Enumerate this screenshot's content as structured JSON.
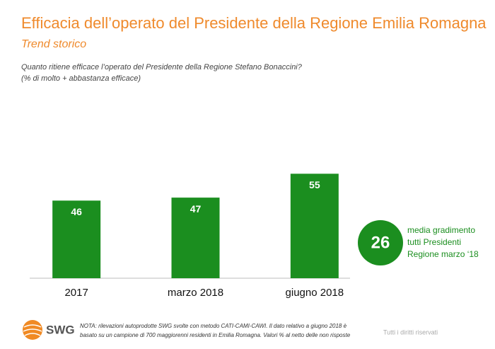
{
  "chart_data": {
    "type": "bar",
    "title": "Efficacia dell’operato del Presidente della Regione Emilia Romagna",
    "subtitle": "Trend storico",
    "question": [
      "Quanto ritiene efficace l’operato del Presidente della Regione Stefano Bonaccini?",
      "(% di molto + abbastanza efficace)"
    ],
    "categories": [
      "2017",
      "marzo 2018",
      "giugno 2018"
    ],
    "values": [
      46,
      47,
      55
    ],
    "color": "#1b8e1f",
    "ylim": [
      20,
      80
    ],
    "benchmark": {
      "value": 26,
      "label": [
        "media gradimento",
        "tutti Presidenti",
        "Regione marzo ‘18"
      ]
    },
    "note": [
      "NOTA: rilevazioni autoprodotte SWG svolte con metodo CATI-CAMI-CAWI. Il dato relativo a giugno 2018 è",
      "basato su un campione di 700 maggiorenni residenti in Emilia Romagna. Valori % al netto delle non risposte"
    ],
    "logo": "SWG",
    "copyright": "Tutti i diritti riservati"
  }
}
